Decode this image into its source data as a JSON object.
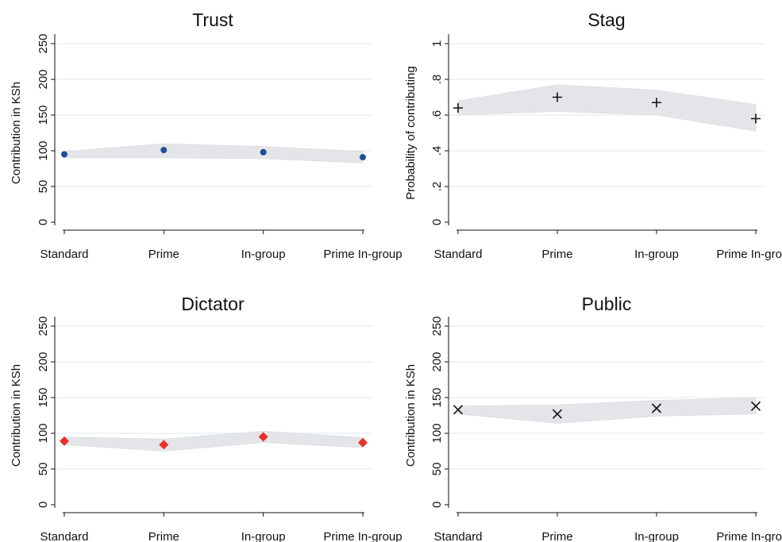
{
  "chart_data": [
    {
      "type": "scatter",
      "title": "Trust",
      "ylabel": "Contribution in KSh",
      "categories": [
        "Standard",
        "Prime",
        "In-group",
        "Prime In-group"
      ],
      "yticks": [
        "0",
        "50",
        "100",
        "150",
        "200",
        "250"
      ],
      "ylim": [
        0,
        250
      ],
      "marker": "circle",
      "color": "#1f4e96",
      "values": [
        95,
        101,
        98,
        91
      ],
      "ci_lower": [
        90,
        90,
        89,
        83
      ],
      "ci_upper": [
        99,
        110,
        106,
        99
      ],
      "grid": true
    },
    {
      "type": "scatter",
      "title": "Stag",
      "ylabel": "Probability of contributing",
      "categories": [
        "Standard",
        "Prime",
        "In-group",
        "Prime In-group"
      ],
      "yticks": [
        "0",
        ".2",
        ".4",
        ".6",
        ".8",
        "1"
      ],
      "ylim": [
        0,
        1
      ],
      "marker": "plus",
      "color": "#111111",
      "values": [
        0.64,
        0.7,
        0.67,
        0.58
      ],
      "ci_lower": [
        0.6,
        0.62,
        0.6,
        0.51
      ],
      "ci_upper": [
        0.68,
        0.77,
        0.74,
        0.66
      ],
      "grid": true
    },
    {
      "type": "scatter",
      "title": "Dictator",
      "ylabel": "Contribution in KSh",
      "categories": [
        "Standard",
        "Prime",
        "In-group",
        "Prime In-group"
      ],
      "yticks": [
        "0",
        "50",
        "100",
        "150",
        "200",
        "250"
      ],
      "ylim": [
        0,
        250
      ],
      "marker": "diamond",
      "color": "#e8302b",
      "values": [
        89,
        84,
        95,
        87
      ],
      "ci_lower": [
        84,
        75,
        87,
        80
      ],
      "ci_upper": [
        95,
        92,
        103,
        94
      ],
      "grid": true
    },
    {
      "type": "scatter",
      "title": "Public",
      "ylabel": "Contribution in KSh",
      "categories": [
        "Standard",
        "Prime",
        "In-group",
        "Prime In-group"
      ],
      "yticks": [
        "0",
        "50",
        "100",
        "150",
        "200",
        "250"
      ],
      "ylim": [
        0,
        250
      ],
      "marker": "x",
      "color": "#111111",
      "values": [
        133,
        127,
        135,
        138
      ],
      "ci_lower": [
        127,
        114,
        124,
        127
      ],
      "ci_upper": [
        138,
        140,
        146,
        150
      ],
      "grid": true
    }
  ]
}
